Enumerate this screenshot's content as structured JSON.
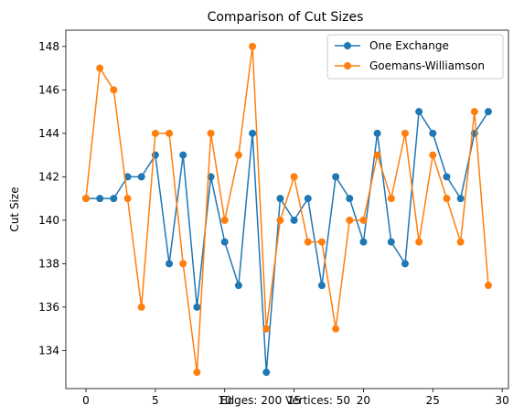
{
  "chart_data": {
    "type": "line",
    "title": "Comparison of Cut Sizes",
    "xlabel": "Edges: 200 Vertices: 50",
    "ylabel": "Cut Size",
    "xlim": [
      -1.45,
      30.45
    ],
    "ylim": [
      132.25,
      148.75
    ],
    "x_ticks": [
      0,
      5,
      10,
      15,
      20,
      25,
      30
    ],
    "y_ticks": [
      134,
      136,
      138,
      140,
      142,
      144,
      146,
      148
    ],
    "grid": false,
    "legend_position": "top-right",
    "x": [
      0,
      1,
      2,
      3,
      4,
      5,
      6,
      7,
      8,
      9,
      10,
      11,
      12,
      13,
      14,
      15,
      16,
      17,
      18,
      19,
      20,
      21,
      22,
      23,
      24,
      25,
      26,
      27,
      28,
      29
    ],
    "series": [
      {
        "name": "One Exchange",
        "color": "#1f77b4",
        "values": [
          141,
          141,
          141,
          142,
          142,
          143,
          138,
          143,
          136,
          142,
          139,
          137,
          144,
          133,
          141,
          140,
          141,
          137,
          142,
          141,
          139,
          144,
          139,
          138,
          145,
          144,
          142,
          141,
          144,
          145
        ]
      },
      {
        "name": "Goemans-Williamson",
        "color": "#ff7f0e",
        "values": [
          141,
          147,
          146,
          141,
          136,
          144,
          144,
          138,
          133,
          144,
          140,
          143,
          148,
          135,
          140,
          142,
          139,
          139,
          135,
          140,
          140,
          143,
          141,
          144,
          139,
          143,
          141,
          139,
          145,
          137
        ]
      }
    ]
  }
}
